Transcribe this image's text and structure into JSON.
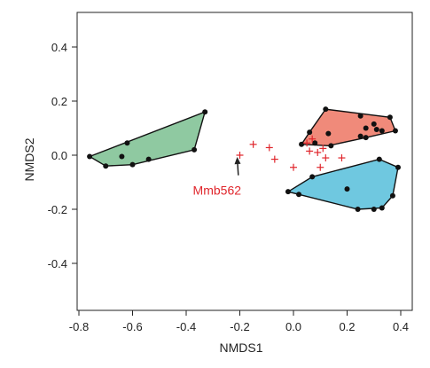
{
  "chart_data": {
    "type": "scatter",
    "xlabel": "NMDS1",
    "ylabel": "NMDS2",
    "xlim": [
      -0.8,
      0.4
    ],
    "ylim": [
      -0.4,
      0.4
    ],
    "x_ticks": [
      "-0.8",
      "-0.6",
      "-0.4",
      "-0.2",
      "0.0",
      "0.2",
      "0.4"
    ],
    "y_ticks": [
      "0.4",
      "0.2",
      "0.0",
      "-0.2",
      "-0.4"
    ],
    "x_tick_values": [
      -0.8,
      -0.6,
      -0.4,
      -0.2,
      0.0,
      0.2,
      0.4
    ],
    "y_tick_values": [
      0.4,
      0.2,
      0.0,
      -0.2,
      -0.4
    ],
    "grid": false,
    "groups": [
      {
        "color": "#8fc9a1",
        "hull": [
          [
            -0.76,
            -0.005
          ],
          [
            -0.33,
            0.16
          ],
          [
            -0.37,
            0.02
          ],
          [
            -0.6,
            -0.035
          ],
          [
            -0.7,
            -0.04
          ]
        ],
        "points": [
          [
            -0.76,
            -0.005
          ],
          [
            -0.7,
            -0.04
          ],
          [
            -0.64,
            -0.005
          ],
          [
            -0.62,
            0.045
          ],
          [
            -0.6,
            -0.035
          ],
          [
            -0.54,
            -0.015
          ],
          [
            -0.37,
            0.02
          ],
          [
            -0.33,
            0.16
          ]
        ]
      },
      {
        "color": "#f08a7a",
        "hull": [
          [
            0.03,
            0.04
          ],
          [
            0.06,
            0.085
          ],
          [
            0.12,
            0.17
          ],
          [
            0.36,
            0.14
          ],
          [
            0.38,
            0.09
          ],
          [
            0.27,
            0.065
          ],
          [
            0.13,
            0.035
          ]
        ],
        "points": [
          [
            0.03,
            0.04
          ],
          [
            0.06,
            0.085
          ],
          [
            0.08,
            0.045
          ],
          [
            0.12,
            0.17
          ],
          [
            0.13,
            0.08
          ],
          [
            0.14,
            0.035
          ],
          [
            0.25,
            0.145
          ],
          [
            0.25,
            0.07
          ],
          [
            0.27,
            0.1
          ],
          [
            0.3,
            0.115
          ],
          [
            0.31,
            0.095
          ],
          [
            0.36,
            0.14
          ],
          [
            0.38,
            0.09
          ],
          [
            0.33,
            0.09
          ],
          [
            0.27,
            0.065
          ]
        ]
      },
      {
        "color": "#6fc8e0",
        "hull": [
          [
            -0.02,
            -0.135
          ],
          [
            0.07,
            -0.08
          ],
          [
            0.32,
            -0.015
          ],
          [
            0.39,
            -0.045
          ],
          [
            0.37,
            -0.15
          ],
          [
            0.33,
            -0.195
          ],
          [
            0.24,
            -0.2
          ]
        ],
        "points": [
          [
            -0.02,
            -0.135
          ],
          [
            0.02,
            -0.145
          ],
          [
            0.07,
            -0.08
          ],
          [
            0.2,
            -0.125
          ],
          [
            0.24,
            -0.2
          ],
          [
            0.3,
            -0.2
          ],
          [
            0.32,
            -0.015
          ],
          [
            0.33,
            -0.195
          ],
          [
            0.37,
            -0.15
          ],
          [
            0.39,
            -0.045
          ]
        ]
      }
    ],
    "plus_points": {
      "color": "#e0262c",
      "points": [
        [
          -0.2,
          0.0
        ],
        [
          -0.15,
          0.04
        ],
        [
          -0.09,
          0.028
        ],
        [
          -0.07,
          -0.015
        ],
        [
          0.0,
          -0.045
        ],
        [
          0.05,
          0.045
        ],
        [
          0.06,
          0.015
        ],
        [
          0.07,
          0.06
        ],
        [
          0.09,
          0.01
        ],
        [
          0.1,
          -0.045
        ],
        [
          0.11,
          0.025
        ],
        [
          0.12,
          -0.01
        ],
        [
          0.18,
          -0.01
        ]
      ]
    },
    "annotation": {
      "text": "Mmb562",
      "color": "#e0262c",
      "target": [
        -0.2,
        0.0
      ],
      "text_anchor": [
        -0.285,
        -0.13
      ]
    }
  }
}
